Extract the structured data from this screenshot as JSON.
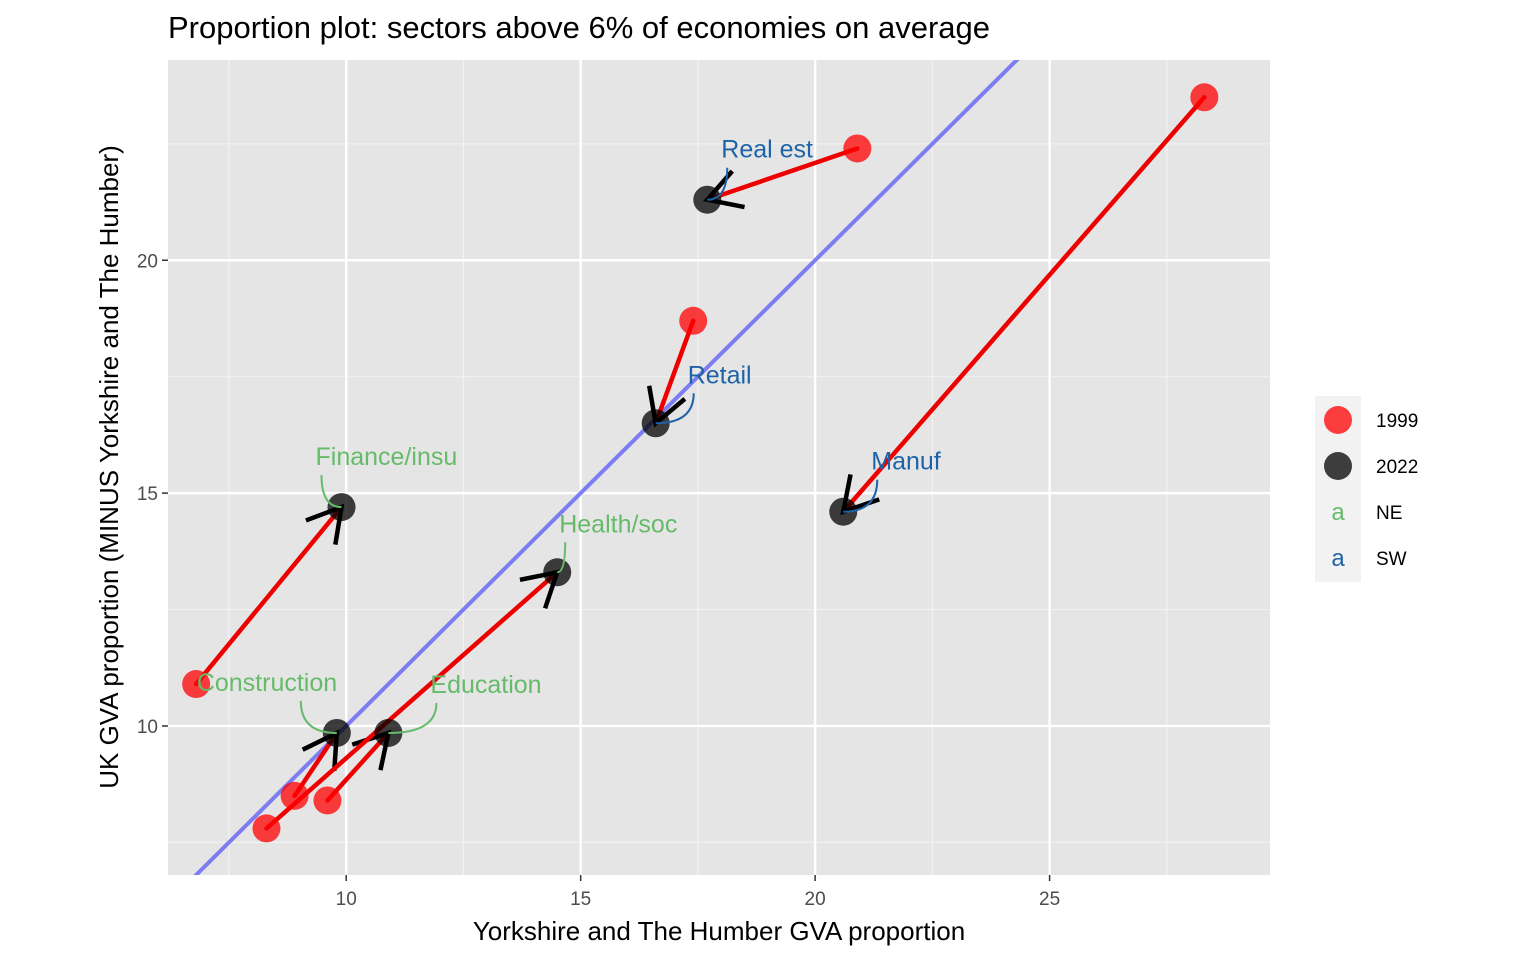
{
  "chart_data": {
    "type": "scatter",
    "title": "Proportion plot: sectors above 6% of economies on average",
    "xlabel": "Yorkshire and The Humber GVA proportion",
    "ylabel": "UK GVA proportion (MINUS Yorkshire and The Humber)",
    "xlim": [
      6.2,
      29.7
    ],
    "ylim": [
      6.8,
      24.3
    ],
    "x_ticks": [
      10,
      15,
      20,
      25
    ],
    "y_ticks": [
      10,
      15,
      20
    ],
    "reference_line": "y = x",
    "series": [
      {
        "name": "1999",
        "color": "#ff0000"
      },
      {
        "name": "2022",
        "color": "#000000"
      }
    ],
    "sectors": [
      {
        "label": "Finance/insu",
        "group": "NE",
        "x1999": 6.8,
        "y1999": 10.9,
        "x2022": 9.9,
        "y2022": 14.7
      },
      {
        "label": "Construction",
        "group": "NE",
        "x1999": 8.9,
        "y1999": 8.5,
        "x2022": 9.8,
        "y2022": 9.85
      },
      {
        "label": "Education",
        "group": "NE",
        "x1999": 9.6,
        "y1999": 8.4,
        "x2022": 10.9,
        "y2022": 9.85
      },
      {
        "label": "Health/soc",
        "group": "NE",
        "x1999": 8.3,
        "y1999": 7.8,
        "x2022": 14.5,
        "y2022": 13.3
      },
      {
        "label": "Retail",
        "group": "SW",
        "x1999": 17.4,
        "y1999": 18.7,
        "x2022": 16.6,
        "y2022": 16.5
      },
      {
        "label": "Real est",
        "group": "SW",
        "x1999": 20.9,
        "y1999": 22.4,
        "x2022": 17.7,
        "y2022": 21.3
      },
      {
        "label": "Manuf",
        "group": "SW",
        "x1999": 28.3,
        "y1999": 23.5,
        "x2022": 20.6,
        "y2022": 14.6
      }
    ],
    "legend": [
      {
        "label": "1999",
        "kind": "point",
        "color": "#ff0000"
      },
      {
        "label": "2022",
        "kind": "point",
        "color": "#000000"
      },
      {
        "label": "NE",
        "kind": "text",
        "symbol": "a",
        "color": "#66bb6a"
      },
      {
        "label": "SW",
        "kind": "text",
        "symbol": "a",
        "color": "#1e63a8"
      }
    ],
    "legend_position": "right"
  }
}
